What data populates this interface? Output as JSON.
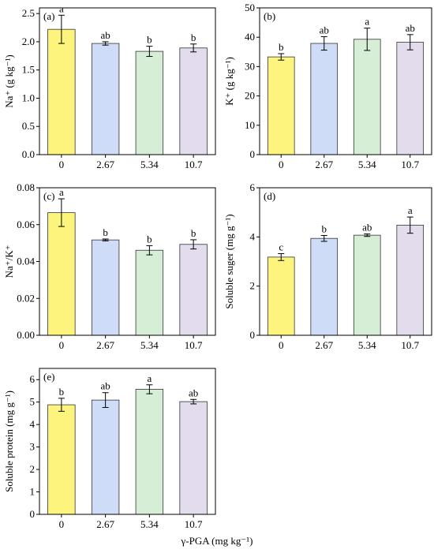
{
  "figure": {
    "xlabel": "γ-PGA (mg kg⁻¹)"
  },
  "chart_data": [
    {
      "type": "bar",
      "panel_label": "(a)",
      "ylabel": "Na⁺ (g kg⁻¹)",
      "categories": [
        "0",
        "2.67",
        "5.34",
        "10.7"
      ],
      "values": [
        2.22,
        1.97,
        1.83,
        1.89
      ],
      "errors": [
        0.25,
        0.03,
        0.09,
        0.07
      ],
      "letters": [
        "a",
        "ab",
        "b",
        "b"
      ],
      "ylim": [
        0.0,
        2.6
      ],
      "yticks": [
        0.0,
        0.5,
        1.0,
        1.5,
        2.0,
        2.5
      ],
      "ytick_labels": [
        "0.0",
        "0.5",
        "1.0",
        "1.5",
        "2.0",
        "2.5"
      ],
      "colors": [
        "#fdf47e",
        "#cfdcf7",
        "#d6eed6",
        "#e2dcec"
      ]
    },
    {
      "type": "bar",
      "panel_label": "(b)",
      "ylabel": "K⁺ (g kg⁻¹)",
      "categories": [
        "0",
        "2.67",
        "5.34",
        "10.7"
      ],
      "values": [
        33.3,
        37.9,
        39.3,
        38.3
      ],
      "errors": [
        1.1,
        2.3,
        3.8,
        2.6
      ],
      "letters": [
        "b",
        "ab",
        "a",
        "ab"
      ],
      "ylim": [
        0,
        50
      ],
      "yticks": [
        0,
        10,
        20,
        30,
        40,
        50
      ],
      "ytick_labels": [
        "0",
        "10",
        "20",
        "30",
        "40",
        "50"
      ],
      "colors": [
        "#fdf47e",
        "#cfdcf7",
        "#d6eed6",
        "#e2dcec"
      ]
    },
    {
      "type": "bar",
      "panel_label": "(c)",
      "ylabel": "Na⁺/K⁺",
      "categories": [
        "0",
        "2.67",
        "5.34",
        "10.7"
      ],
      "values": [
        0.0665,
        0.0517,
        0.0461,
        0.0493
      ],
      "errors": [
        0.0075,
        0.0005,
        0.0025,
        0.0025
      ],
      "letters": [
        "a",
        "b",
        "b",
        "b"
      ],
      "ylim": [
        0.0,
        0.08
      ],
      "yticks": [
        0.0,
        0.02,
        0.04,
        0.06,
        0.08
      ],
      "ytick_labels": [
        "0.00",
        "0.02",
        "0.04",
        "0.06",
        "0.08"
      ],
      "colors": [
        "#fdf47e",
        "#cfdcf7",
        "#d6eed6",
        "#e2dcec"
      ]
    },
    {
      "type": "bar",
      "panel_label": "(d)",
      "ylabel": "Soluble suger (mg g⁻¹)",
      "categories": [
        "0",
        "2.67",
        "5.34",
        "10.7"
      ],
      "values": [
        3.18,
        3.94,
        4.07,
        4.48
      ],
      "errors": [
        0.14,
        0.12,
        0.05,
        0.33
      ],
      "letters": [
        "c",
        "b",
        "ab",
        "a"
      ],
      "ylim": [
        0,
        6
      ],
      "yticks": [
        0,
        2,
        4,
        6
      ],
      "ytick_labels": [
        "0",
        "2",
        "4",
        "6"
      ],
      "colors": [
        "#fdf47e",
        "#cfdcf7",
        "#d6eed6",
        "#e2dcec"
      ]
    },
    {
      "type": "bar",
      "panel_label": "(e)",
      "ylabel": "Soluble protein (mg g⁻¹)",
      "categories": [
        "0",
        "2.67",
        "5.34",
        "10.7"
      ],
      "values": [
        4.88,
        5.09,
        5.57,
        5.02
      ],
      "errors": [
        0.29,
        0.33,
        0.2,
        0.1
      ],
      "letters": [
        "b",
        "ab",
        "a",
        "ab"
      ],
      "ylim": [
        0,
        6.5
      ],
      "yticks": [
        0,
        1,
        2,
        3,
        4,
        5,
        6
      ],
      "ytick_labels": [
        "0",
        "1",
        "2",
        "3",
        "4",
        "5",
        "6"
      ],
      "colors": [
        "#fdf47e",
        "#cfdcf7",
        "#d6eed6",
        "#e2dcec"
      ]
    }
  ]
}
